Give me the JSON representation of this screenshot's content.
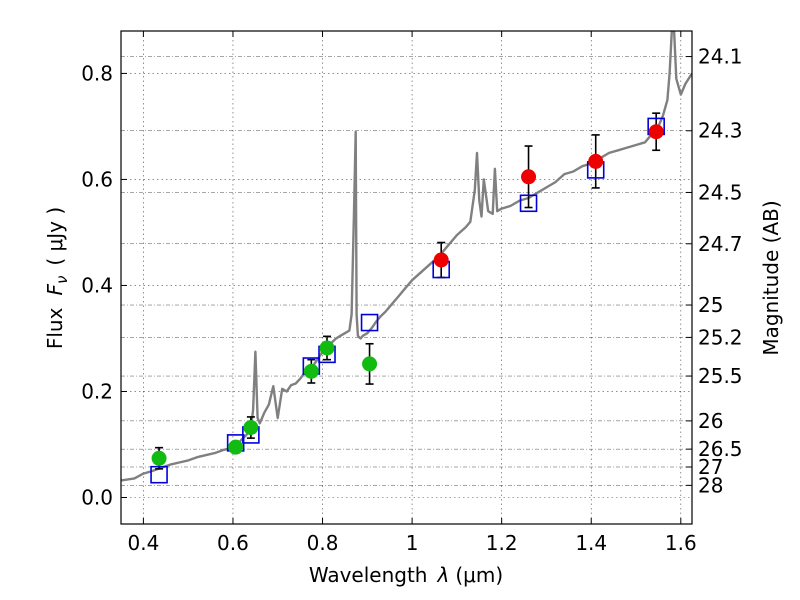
{
  "chart_data": {
    "type": "scatter",
    "xlabel_text": "Wavelength",
    "xlabel_symbol": "λ",
    "xlabel_unit": "(μm)",
    "ylabel_text": "Flux",
    "ylabel_symbol": "F",
    "ylabel_subscript": "ν",
    "ylabel_unit": "( μJy )",
    "y2label": "Magnitude (AB)",
    "xlim": [
      0.35,
      1.625
    ],
    "ylim": [
      -0.05,
      0.88
    ],
    "grid": true,
    "x_ticks": [
      {
        "value": 0.4,
        "label": "0.4"
      },
      {
        "value": 0.6,
        "label": "0.6"
      },
      {
        "value": 0.8,
        "label": "0.8"
      },
      {
        "value": 1.0,
        "label": "1"
      },
      {
        "value": 1.2,
        "label": "1.2"
      },
      {
        "value": 1.4,
        "label": "1.4"
      },
      {
        "value": 1.6,
        "label": "1.6"
      }
    ],
    "y_ticks": [
      {
        "value": 0.0,
        "label": "0.0"
      },
      {
        "value": 0.2,
        "label": "0.2"
      },
      {
        "value": 0.4,
        "label": "0.4"
      },
      {
        "value": 0.6,
        "label": "0.6"
      },
      {
        "value": 0.8,
        "label": "0.8"
      }
    ],
    "mag_ticks": [
      {
        "value": 24.1,
        "label": "24.1"
      },
      {
        "value": 24.3,
        "label": "24.3"
      },
      {
        "value": 24.5,
        "label": "24.5"
      },
      {
        "value": 24.7,
        "label": "24.7"
      },
      {
        "value": 25.0,
        "label": "25"
      },
      {
        "value": 25.2,
        "label": "25.2"
      },
      {
        "value": 25.5,
        "label": "25.5"
      },
      {
        "value": 26.0,
        "label": "26"
      },
      {
        "value": 26.5,
        "label": "26.5"
      },
      {
        "value": 27.0,
        "label": "27"
      },
      {
        "value": 28.0,
        "label": "28"
      }
    ],
    "model_spectrum": {
      "color": "#808080",
      "x": [
        0.35,
        0.38,
        0.4,
        0.42,
        0.44,
        0.46,
        0.48,
        0.5,
        0.52,
        0.54,
        0.56,
        0.58,
        0.6,
        0.61,
        0.62,
        0.63,
        0.64,
        0.645,
        0.65,
        0.655,
        0.66,
        0.67,
        0.68,
        0.69,
        0.7,
        0.71,
        0.72,
        0.73,
        0.74,
        0.75,
        0.76,
        0.77,
        0.78,
        0.79,
        0.8,
        0.81,
        0.82,
        0.83,
        0.84,
        0.85,
        0.86,
        0.865,
        0.87,
        0.874,
        0.876,
        0.879,
        0.882,
        0.885,
        0.89,
        0.9,
        0.91,
        0.92,
        0.93,
        0.94,
        0.95,
        0.96,
        0.97,
        0.98,
        0.99,
        1.0,
        1.02,
        1.04,
        1.06,
        1.08,
        1.1,
        1.12,
        1.13,
        1.14,
        1.145,
        1.15,
        1.155,
        1.16,
        1.17,
        1.18,
        1.185,
        1.19,
        1.2,
        1.22,
        1.24,
        1.26,
        1.28,
        1.3,
        1.32,
        1.34,
        1.36,
        1.38,
        1.4,
        1.42,
        1.44,
        1.46,
        1.48,
        1.5,
        1.52,
        1.54,
        1.55,
        1.56,
        1.57,
        1.575,
        1.58,
        1.585,
        1.59,
        1.6,
        1.61,
        1.625
      ],
      "y": [
        0.032,
        0.036,
        0.045,
        0.05,
        0.056,
        0.062,
        0.066,
        0.07,
        0.076,
        0.08,
        0.084,
        0.09,
        0.094,
        0.1,
        0.11,
        0.118,
        0.13,
        0.165,
        0.275,
        0.15,
        0.14,
        0.16,
        0.175,
        0.21,
        0.15,
        0.205,
        0.2,
        0.212,
        0.215,
        0.224,
        0.235,
        0.24,
        0.25,
        0.262,
        0.275,
        0.285,
        0.292,
        0.3,
        0.305,
        0.31,
        0.315,
        0.345,
        0.53,
        0.69,
        0.345,
        0.305,
        0.302,
        0.3,
        0.305,
        0.31,
        0.32,
        0.332,
        0.342,
        0.35,
        0.36,
        0.37,
        0.38,
        0.39,
        0.4,
        0.41,
        0.425,
        0.44,
        0.455,
        0.475,
        0.495,
        0.51,
        0.52,
        0.58,
        0.65,
        0.56,
        0.53,
        0.6,
        0.54,
        0.535,
        0.62,
        0.54,
        0.545,
        0.55,
        0.56,
        0.565,
        0.575,
        0.585,
        0.595,
        0.61,
        0.615,
        0.625,
        0.63,
        0.64,
        0.65,
        0.655,
        0.66,
        0.665,
        0.67,
        0.69,
        0.7,
        0.72,
        0.75,
        0.8,
        0.95,
        0.96,
        0.79,
        0.76,
        0.78,
        0.8
      ]
    },
    "series": [
      {
        "name": "model_bands",
        "marker": "square",
        "color": "#0000dd",
        "x": [
          0.435,
          0.606,
          0.64,
          0.775,
          0.81,
          0.905,
          1.065,
          1.26,
          1.41,
          1.545
        ],
        "y": [
          0.043,
          0.103,
          0.118,
          0.248,
          0.27,
          0.33,
          0.43,
          0.555,
          0.618,
          0.7
        ]
      },
      {
        "name": "optical_observed",
        "marker": "circle",
        "color": "#11bb11",
        "x": [
          0.435,
          0.606,
          0.64,
          0.775,
          0.81,
          0.905
        ],
        "y": [
          0.074,
          0.095,
          0.132,
          0.238,
          0.282,
          0.252
        ],
        "yerr": [
          0.02,
          0.01,
          0.02,
          0.022,
          0.022,
          0.038
        ]
      },
      {
        "name": "nir_observed",
        "marker": "circle",
        "color": "#ee0000",
        "x": [
          1.065,
          1.26,
          1.41,
          1.545
        ],
        "y": [
          0.448,
          0.605,
          0.634,
          0.69
        ],
        "yerr": [
          0.033,
          0.058,
          0.05,
          0.035
        ]
      }
    ]
  }
}
